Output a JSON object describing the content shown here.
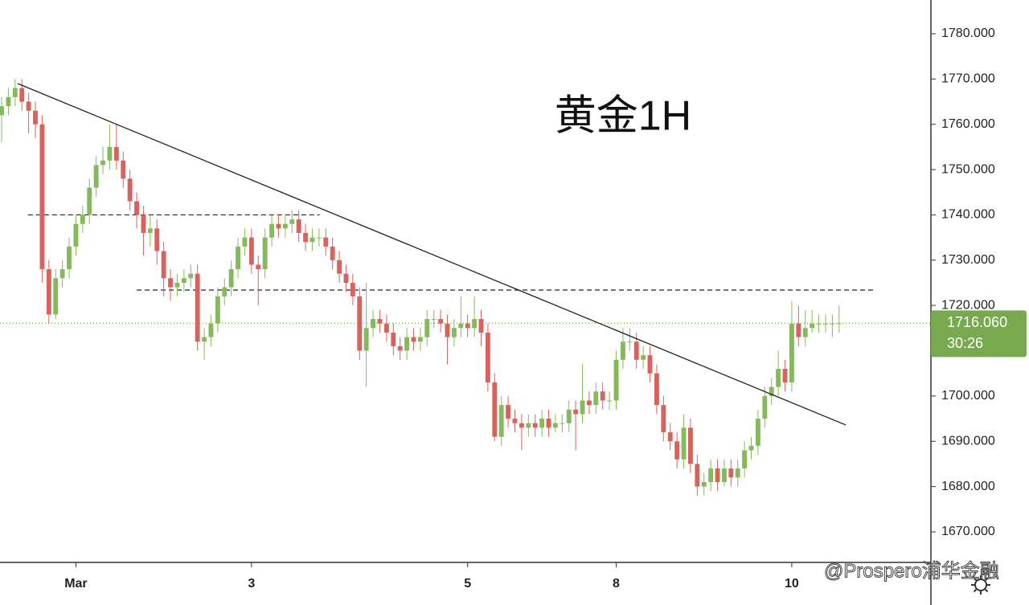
{
  "chart_data": {
    "type": "candlestick",
    "title": "黄金1H",
    "watermark": "@Prospero浦华金融",
    "up_color": "#86b95c",
    "down_color": "#d9625c",
    "ylim": [
      1663.25,
      1787.45
    ],
    "xlim": [
      -0.24,
      137.6
    ],
    "yticks": [
      {
        "value": 1670,
        "label": "1670.000"
      },
      {
        "value": 1680,
        "label": "1680.000"
      },
      {
        "value": 1690,
        "label": "1690.000"
      },
      {
        "value": 1700,
        "label": "1700.000"
      },
      {
        "value": 1710,
        "label": "1710.000"
      },
      {
        "value": 1720,
        "label": "1720.000"
      },
      {
        "value": 1730,
        "label": "1730.000"
      },
      {
        "value": 1740,
        "label": "1740.000"
      },
      {
        "value": 1750,
        "label": "1750.000"
      },
      {
        "value": 1760,
        "label": "1760.000"
      },
      {
        "value": 1770,
        "label": "1770.000"
      },
      {
        "value": 1780,
        "label": "1780.000"
      }
    ],
    "categories": [
      null,
      null,
      null,
      null,
      null,
      null,
      null,
      null,
      null,
      null,
      null,
      "Mar",
      null,
      null,
      null,
      null,
      null,
      null,
      null,
      null,
      null,
      null,
      null,
      null,
      null,
      null,
      null,
      null,
      null,
      null,
      null,
      null,
      null,
      null,
      null,
      null,
      null,
      "3",
      null,
      null,
      null,
      null,
      null,
      null,
      null,
      null,
      null,
      null,
      null,
      null,
      null,
      null,
      null,
      null,
      null,
      null,
      null,
      null,
      null,
      null,
      null,
      null,
      null,
      null,
      null,
      null,
      null,
      null,
      null,
      "5",
      null,
      null,
      null,
      null,
      null,
      null,
      null,
      null,
      null,
      null,
      null,
      null,
      null,
      null,
      null,
      null,
      null,
      null,
      null,
      null,
      null,
      "8",
      null,
      null,
      null,
      null,
      null,
      null,
      null,
      null,
      null,
      null,
      null,
      null,
      null,
      null,
      null,
      null,
      null,
      null,
      null,
      null,
      null,
      null,
      null,
      null,
      null,
      "10",
      null,
      null,
      null,
      null,
      null,
      null,
      null
    ],
    "open": [
      1762,
      1764,
      1766,
      1768,
      1765,
      1763,
      1760,
      1728,
      1718,
      1726,
      1728,
      1733,
      1738,
      1740,
      1746,
      1751,
      1752,
      1755,
      1752,
      1748,
      1743,
      1740,
      1736,
      1737,
      1732,
      1726,
      1724,
      1725,
      1726,
      1727,
      1712,
      1713,
      1716,
      1722,
      1724,
      1728,
      1733,
      1735,
      1729,
      1728,
      1735,
      1738,
      1737,
      1738,
      1739,
      1736,
      1734,
      1735,
      1735,
      1733,
      1730,
      1727,
      1725,
      1722,
      1710,
      1715,
      1717,
      1716,
      1714,
      1711,
      1710,
      1713,
      1712,
      1713,
      1717,
      1717,
      1716,
      1713,
      1715,
      1716,
      1715,
      1717,
      1714,
      1703,
      1691,
      1698,
      1695,
      1694,
      1693,
      1694,
      1693,
      1695,
      1693,
      1694,
      1694,
      1697,
      1696,
      1699,
      1698,
      1701,
      1699,
      1699,
      1708,
      1712,
      1712,
      1708,
      1709,
      1705,
      1698,
      1692,
      1690,
      1686,
      1693,
      1685,
      1680,
      1681,
      1684,
      1681,
      1684,
      1682,
      1684,
      1688,
      1689,
      1695,
      1700,
      1702,
      1706,
      1703,
      1716,
      1713,
      1715,
      1716,
      1716,
      1716,
      1716
    ],
    "high": [
      1766,
      1768,
      1770,
      1770,
      1767,
      1765,
      1762,
      1730,
      1728,
      1730,
      1735,
      1740,
      1742,
      1748,
      1753,
      1755,
      1760,
      1760,
      1754,
      1750,
      1745,
      1742,
      1740,
      1739,
      1734,
      1728,
      1727,
      1728,
      1729,
      1729,
      1715,
      1718,
      1724,
      1726,
      1730,
      1735,
      1737,
      1737,
      1731,
      1737,
      1740,
      1740,
      1740,
      1741,
      1741,
      1738,
      1737,
      1737,
      1737,
      1735,
      1732,
      1729,
      1727,
      1724,
      1725,
      1719,
      1719,
      1718,
      1716,
      1713,
      1715,
      1715,
      1715,
      1719,
      1719,
      1719,
      1718,
      1717,
      1722,
      1718,
      1722,
      1719,
      1716,
      1705,
      1700,
      1700,
      1697,
      1696,
      1696,
      1696,
      1697,
      1697,
      1696,
      1696,
      1699,
      1699,
      1707,
      1701,
      1703,
      1703,
      1701,
      1710,
      1715,
      1715,
      1714,
      1711,
      1711,
      1707,
      1700,
      1694,
      1692,
      1696,
      1695,
      1687,
      1683,
      1686,
      1686,
      1686,
      1686,
      1686,
      1690,
      1691,
      1697,
      1702,
      1704,
      1710,
      1708,
      1721,
      1720,
      1719,
      1719,
      1718,
      1718,
      1718,
      1720
    ],
    "low": [
      1756,
      1762,
      1764,
      1763,
      1758,
      1757,
      1725,
      1716,
      1717,
      1724,
      1726,
      1731,
      1736,
      1738,
      1744,
      1749,
      1750,
      1750,
      1746,
      1741,
      1737,
      1731,
      1733,
      1729,
      1722,
      1721,
      1722,
      1723,
      1724,
      1710,
      1708,
      1711,
      1714,
      1720,
      1722,
      1726,
      1731,
      1727,
      1720,
      1726,
      1733,
      1735,
      1735,
      1736,
      1734,
      1732,
      1732,
      1733,
      1731,
      1728,
      1725,
      1723,
      1720,
      1708,
      1702,
      1713,
      1714,
      1712,
      1709,
      1708,
      1708,
      1710,
      1710,
      1711,
      1715,
      1714,
      1707,
      1711,
      1713,
      1713,
      1713,
      1711,
      1701,
      1690,
      1689,
      1693,
      1692,
      1688,
      1691,
      1691,
      1691,
      1691,
      1692,
      1692,
      1692,
      1688,
      1694,
      1696,
      1696,
      1697,
      1697,
      1697,
      1706,
      1710,
      1706,
      1706,
      1703,
      1696,
      1690,
      1688,
      1684,
      1684,
      1683,
      1678,
      1678,
      1679,
      1679,
      1680,
      1680,
      1680,
      1682,
      1686,
      1687,
      1693,
      1698,
      1700,
      1701,
      1701,
      1711,
      1711,
      1714,
      1714,
      1714,
      1713,
      1714
    ],
    "close": [
      1764,
      1766,
      1768,
      1765,
      1763,
      1760,
      1728,
      1718,
      1726,
      1728,
      1733,
      1738,
      1740,
      1746,
      1751,
      1752,
      1755,
      1752,
      1748,
      1743,
      1740,
      1736,
      1737,
      1732,
      1726,
      1724,
      1725,
      1726,
      1727,
      1712,
      1713,
      1716,
      1722,
      1724,
      1728,
      1733,
      1735,
      1729,
      1728,
      1735,
      1738,
      1737,
      1738,
      1739,
      1736,
      1734,
      1735,
      1735,
      1733,
      1730,
      1727,
      1725,
      1722,
      1710,
      1715,
      1717,
      1716,
      1714,
      1711,
      1710,
      1713,
      1712,
      1713,
      1717,
      1717,
      1716,
      1713,
      1715,
      1716,
      1715,
      1717,
      1714,
      1703,
      1691,
      1698,
      1695,
      1694,
      1693,
      1694,
      1693,
      1695,
      1693,
      1694,
      1694,
      1697,
      1696,
      1699,
      1698,
      1701,
      1699,
      1699,
      1708,
      1712,
      1712,
      1708,
      1709,
      1705,
      1698,
      1692,
      1690,
      1686,
      1693,
      1685,
      1680,
      1681,
      1684,
      1681,
      1684,
      1682,
      1684,
      1688,
      1689,
      1695,
      1700,
      1702,
      1706,
      1703,
      1716,
      1713,
      1715,
      1716,
      1716,
      1716,
      1716,
      1716.06
    ],
    "trendline": {
      "x": [
        2.38,
        125
      ],
      "y": [
        1769,
        1693.6
      ],
      "color": "#222222"
    },
    "levels": [
      {
        "value": 1740,
        "x": [
          3.9,
          47.1
        ]
      },
      {
        "value": 1723.4,
        "x": [
          20,
          129.5
        ]
      }
    ],
    "last_price": {
      "value": 1716.06,
      "label": "1716.060",
      "countdown": "30:26",
      "color": "#78a94f"
    }
  }
}
